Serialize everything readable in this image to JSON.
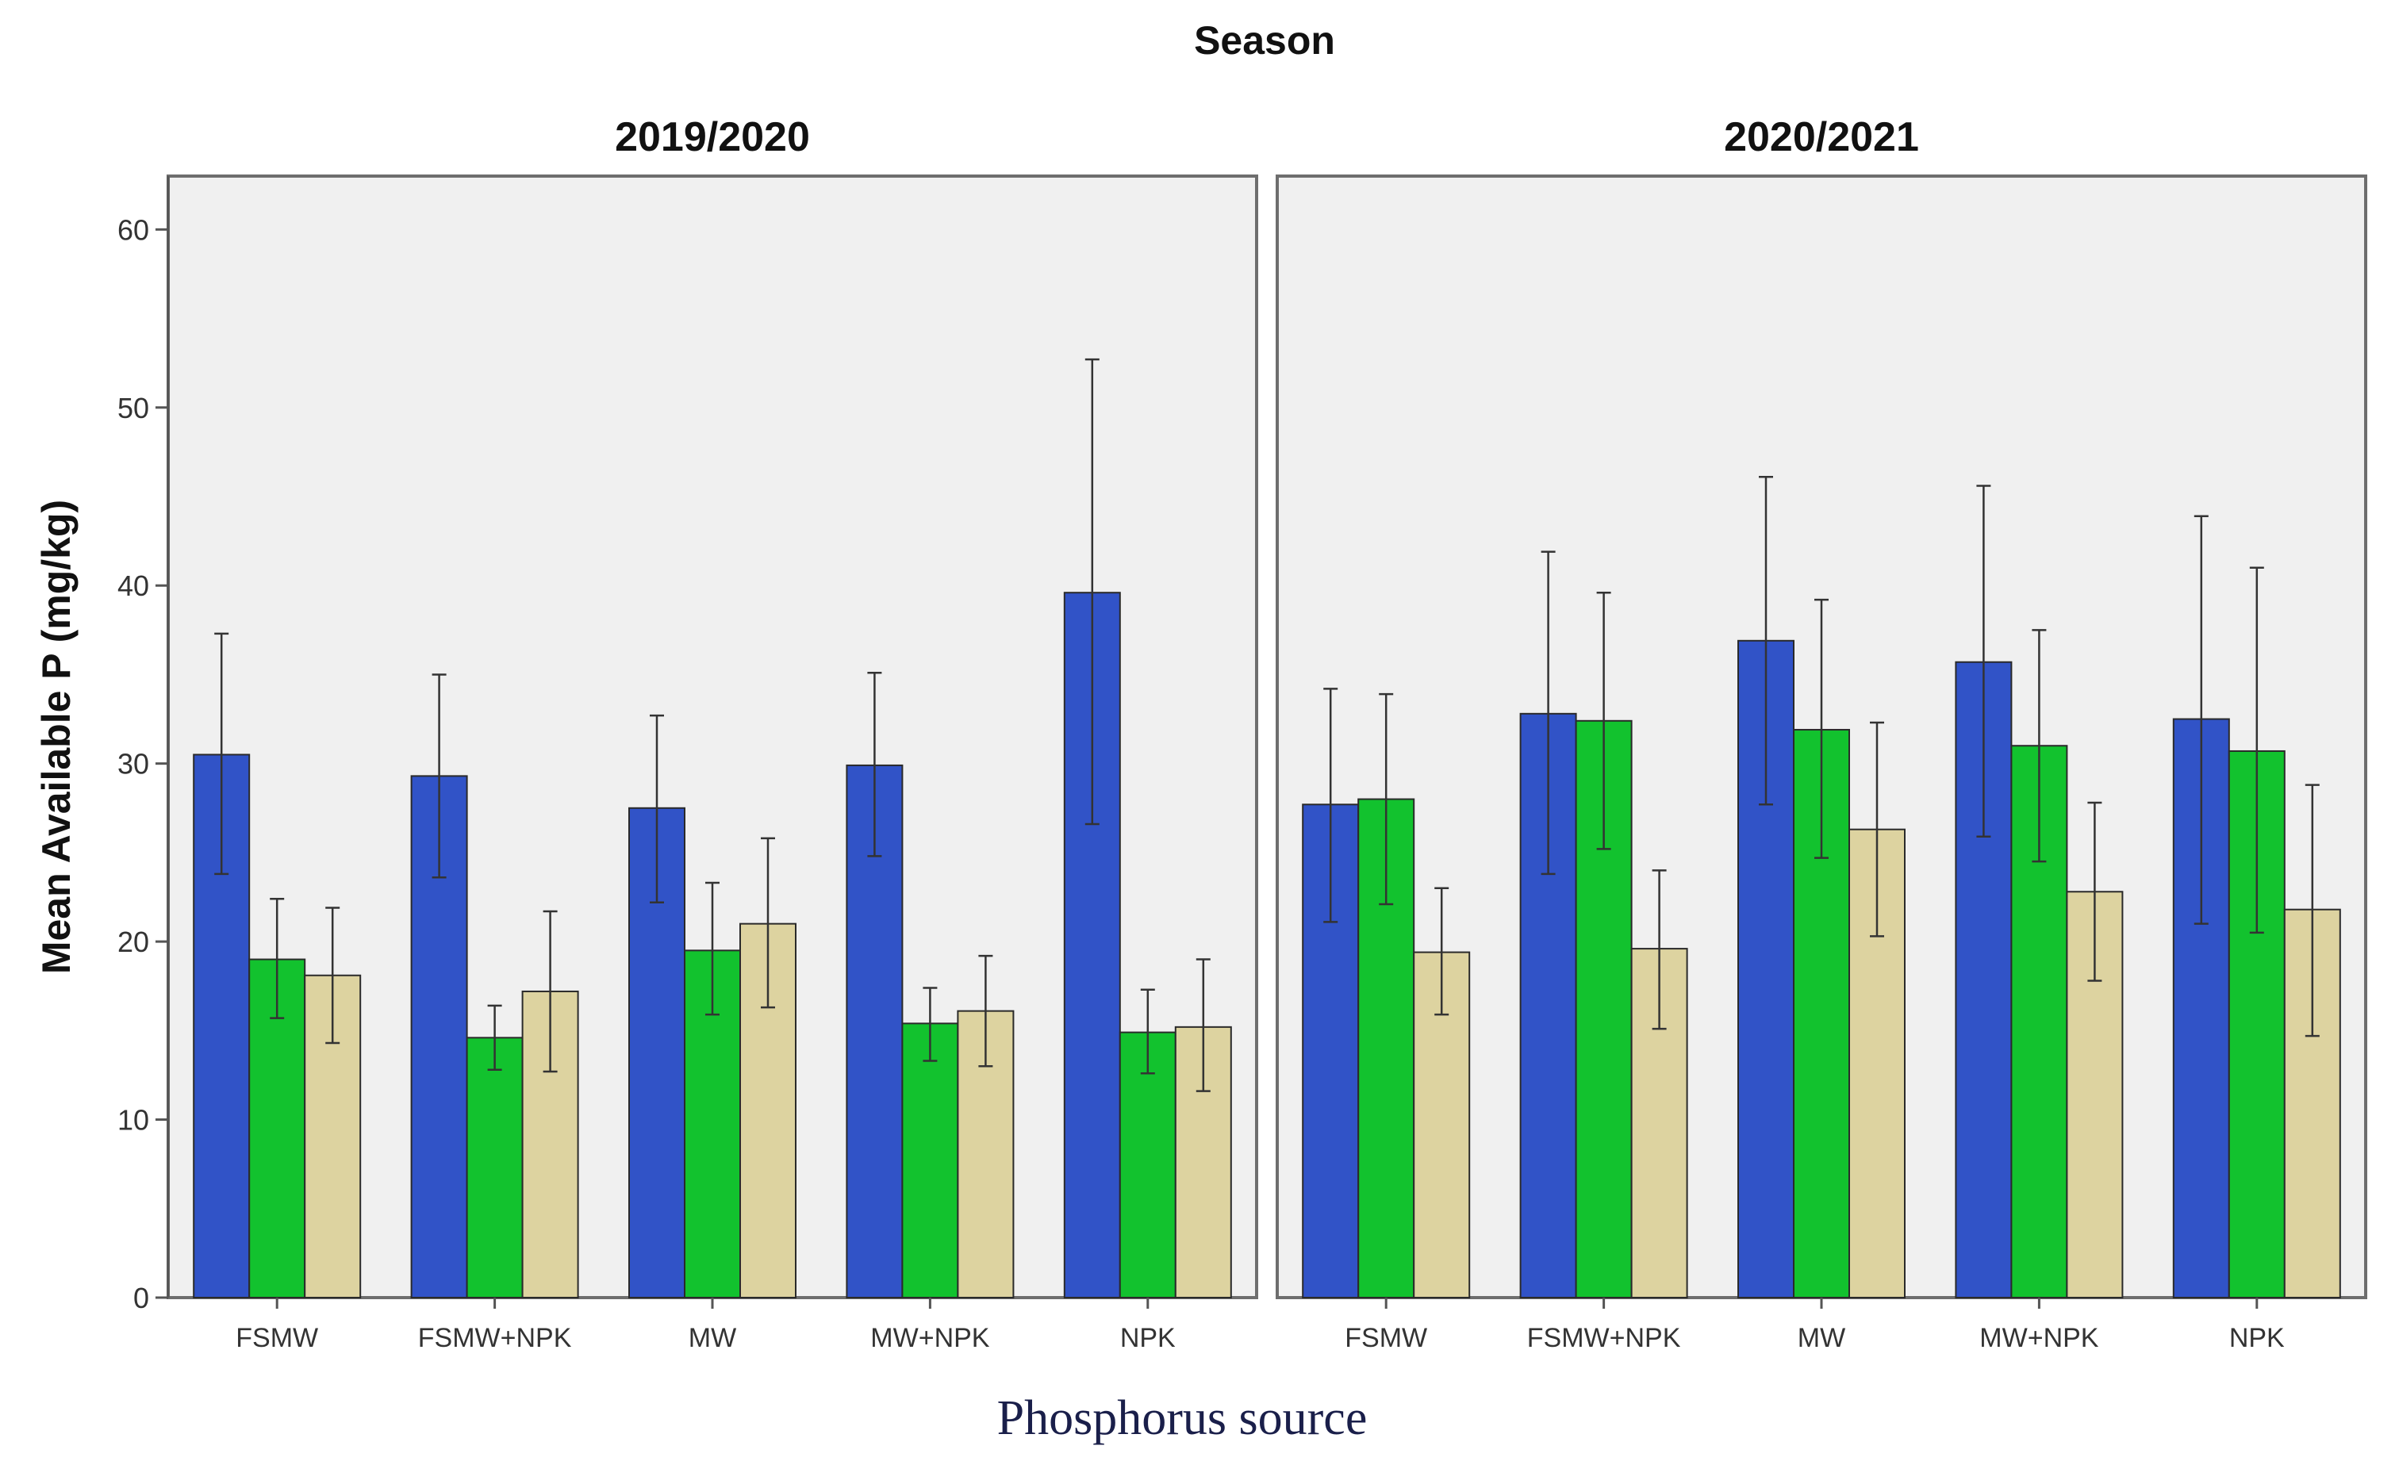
{
  "chart_data": {
    "type": "bar",
    "title": "Season",
    "xlabel": "Phosphorus source",
    "ylabel": "Mean Available P (mg/kg)",
    "ylim": [
      0,
      63
    ],
    "yticks": [
      0,
      10,
      20,
      30,
      40,
      50,
      60
    ],
    "series_colors": [
      "#3153c7",
      "#12c22e",
      "#ddd3a0"
    ],
    "grid": false,
    "panels": [
      {
        "title": "2019/2020",
        "categories": [
          "FSMW",
          "FSMW+NPK",
          "MW",
          "MW+NPK",
          "NPK"
        ],
        "series": [
          {
            "values": [
              30.5,
              29.3,
              27.5,
              29.9,
              39.6
            ],
            "err_low": [
              23.8,
              23.6,
              22.2,
              24.8,
              26.6
            ],
            "err_high": [
              37.3,
              35.0,
              32.7,
              35.1,
              52.7
            ]
          },
          {
            "values": [
              19.0,
              14.6,
              19.5,
              15.4,
              14.9
            ],
            "err_low": [
              15.7,
              12.8,
              15.9,
              13.3,
              12.6
            ],
            "err_high": [
              22.4,
              16.4,
              23.3,
              17.4,
              17.3
            ]
          },
          {
            "values": [
              18.1,
              17.2,
              21.0,
              16.1,
              15.2
            ],
            "err_low": [
              14.3,
              12.7,
              16.3,
              13.0,
              11.6
            ],
            "err_high": [
              21.9,
              21.7,
              25.8,
              19.2,
              19.0
            ]
          }
        ]
      },
      {
        "title": "2020/2021",
        "categories": [
          "FSMW",
          "FSMW+NPK",
          "MW",
          "MW+NPK",
          "NPK"
        ],
        "series": [
          {
            "values": [
              27.7,
              32.8,
              36.9,
              35.7,
              32.5
            ],
            "err_low": [
              21.1,
              23.8,
              27.7,
              25.9,
              21.0
            ],
            "err_high": [
              34.2,
              41.9,
              46.1,
              45.6,
              43.9
            ]
          },
          {
            "values": [
              28.0,
              32.4,
              31.9,
              31.0,
              30.7
            ],
            "err_low": [
              22.1,
              25.2,
              24.7,
              24.5,
              20.5
            ],
            "err_high": [
              33.9,
              39.6,
              39.2,
              37.5,
              41.0
            ]
          },
          {
            "values": [
              19.4,
              19.6,
              26.3,
              22.8,
              21.8
            ],
            "err_low": [
              15.9,
              15.1,
              20.3,
              17.8,
              14.7
            ],
            "err_high": [
              23.0,
              24.0,
              32.3,
              27.8,
              28.8
            ]
          }
        ]
      }
    ]
  }
}
